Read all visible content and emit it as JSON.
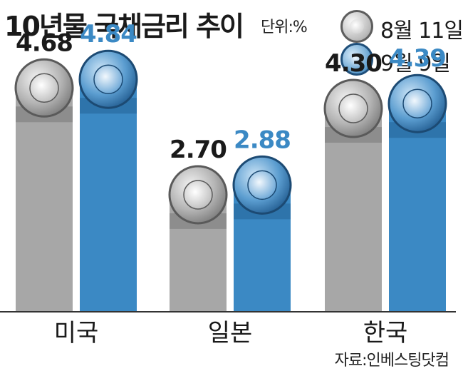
{
  "title": "10년물 국채금리 추이",
  "unit": "단위:%",
  "source": "자료:인베스팅닷컴",
  "colors": {
    "series_gray": "#a7a7a7",
    "series_blue": "#3b89c4",
    "value_gray": "#1a1a1a",
    "value_blue": "#3b89c4"
  },
  "chart_data": {
    "type": "bar",
    "title": "10년물 국채금리 추이",
    "ylabel": "단위:%",
    "categories": [
      "미국",
      "일본",
      "한국"
    ],
    "series": [
      {
        "name": "8월 11일",
        "values": [
          4.68,
          2.7,
          4.3
        ]
      },
      {
        "name": "9월 9일",
        "values": [
          4.84,
          2.88,
          4.39
        ]
      }
    ],
    "value_labels": [
      [
        "4.68",
        "2.70",
        "4.30"
      ],
      [
        "4.84",
        "2.88",
        "4.39"
      ]
    ],
    "ylim": [
      0,
      5.2
    ],
    "grid": false,
    "legend_position": "top-right"
  }
}
